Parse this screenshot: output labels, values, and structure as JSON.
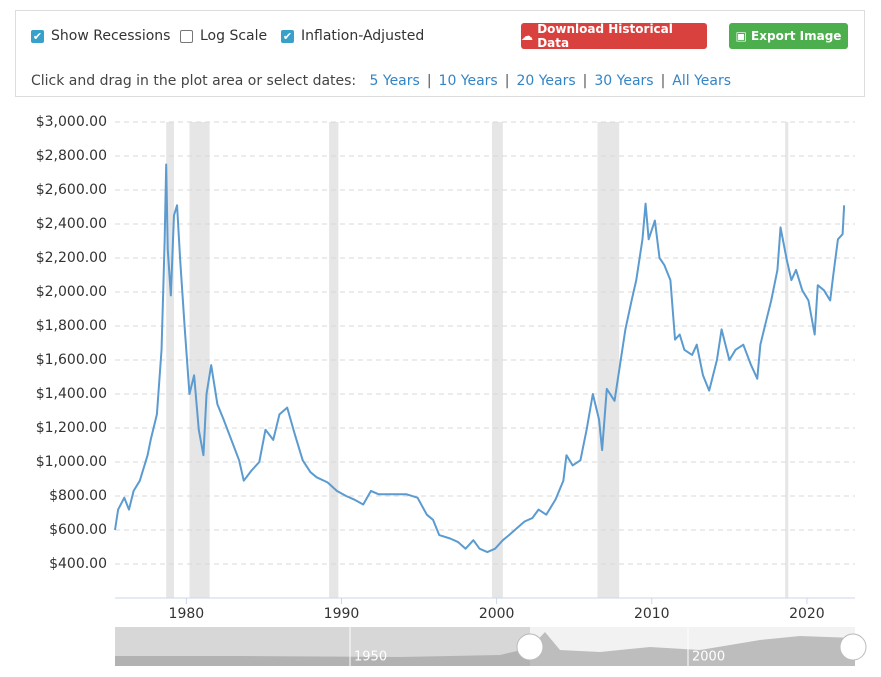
{
  "controls": {
    "checkboxes": [
      {
        "label": "Show Recessions",
        "checked": true
      },
      {
        "label": "Log Scale",
        "checked": false
      },
      {
        "label": "Inflation-Adjusted",
        "checked": true
      }
    ],
    "buttons": [
      {
        "label": "Download Historical Data",
        "color": "#d9413f"
      },
      {
        "label": "Export Image",
        "color": "#4cae4c"
      }
    ],
    "prompt": "Click and drag in the plot area or select dates:",
    "ranges": [
      "5 Years",
      "10 Years",
      "20 Years",
      "30 Years",
      "All Years"
    ],
    "separator": "|"
  },
  "chart_data": {
    "type": "line",
    "xlim": [
      1975.4,
      2023.1
    ],
    "xticks": [
      1980,
      1990,
      2000,
      2010,
      2020
    ],
    "ylim": [
      200,
      3000
    ],
    "yticks": [
      {
        "value": 400,
        "label": "$400.00"
      },
      {
        "value": 600,
        "label": "$600.00"
      },
      {
        "value": 800,
        "label": "$800.00"
      },
      {
        "value": 1000,
        "label": "$1,000.00"
      },
      {
        "value": 1200,
        "label": "$1,200.00"
      },
      {
        "value": 1400,
        "label": "$1,400.00"
      },
      {
        "value": 1600,
        "label": "$1,600.00"
      },
      {
        "value": 1800,
        "label": "$1,800.00"
      },
      {
        "value": 2000,
        "label": "$2,000.00"
      },
      {
        "value": 2200,
        "label": "$2,200.00"
      },
      {
        "value": 2400,
        "label": "$2,400.00"
      },
      {
        "value": 2600,
        "label": "$2,600.00"
      },
      {
        "value": 2800,
        "label": "$2,800.00"
      },
      {
        "value": 3000,
        "label": "$3,000.00"
      }
    ],
    "grid": true,
    "recession_color": "#e6e6e6",
    "recessions": [
      [
        1978.7,
        1979.2
      ],
      [
        1980.2,
        1981.5
      ],
      [
        1989.2,
        1989.8
      ],
      [
        1999.7,
        2000.4
      ],
      [
        2006.5,
        2007.9
      ],
      [
        2018.6,
        2018.8
      ]
    ],
    "series": [
      {
        "color": "#5b9bd0",
        "x": [
          1975.4,
          1975.6,
          1976.0,
          1976.3,
          1976.6,
          1977.0,
          1977.5,
          1977.7,
          1978.1,
          1978.4,
          1978.6,
          1978.7,
          1978.8,
          1979.0,
          1979.2,
          1979.4,
          1979.6,
          1979.9,
          1980.2,
          1980.5,
          1980.8,
          1981.1,
          1981.3,
          1981.6,
          1982.0,
          1982.4,
          1982.9,
          1983.4,
          1983.7,
          1984.2,
          1984.7,
          1985.1,
          1985.6,
          1986.0,
          1986.5,
          1987.0,
          1987.5,
          1988.0,
          1988.4,
          1989.1,
          1989.7,
          1990.3,
          1990.8,
          1991.4,
          1991.9,
          1992.4,
          1993.2,
          1994.2,
          1994.9,
          1995.5,
          1995.9,
          1996.3,
          1997.0,
          1997.5,
          1998.0,
          1998.5,
          1998.9,
          1999.4,
          1999.9,
          2000.4,
          2000.8,
          2001.3,
          2001.8,
          2002.3,
          2002.7,
          2003.2,
          2003.8,
          2004.3,
          2004.5,
          2004.9,
          2005.4,
          2005.8,
          2006.2,
          2006.6,
          2006.8,
          2007.1,
          2007.6,
          2008.0,
          2008.3,
          2008.7,
          2009.0,
          2009.4,
          2009.6,
          2009.8,
          2010.2,
          2010.5,
          2010.8,
          2011.2,
          2011.5,
          2011.8,
          2012.1,
          2012.6,
          2012.9,
          2013.3,
          2013.7,
          2014.2,
          2014.5,
          2015.0,
          2015.4,
          2015.9,
          2016.4,
          2016.8,
          2017.0,
          2017.4,
          2017.7,
          2018.1,
          2018.3,
          2018.7,
          2019.0,
          2019.3,
          2019.7,
          2020.1,
          2020.5,
          2020.7,
          2021.1,
          2021.5,
          2021.7,
          2022.0,
          2022.3,
          2022.4
        ],
        "values": [
          600,
          720,
          790,
          720,
          830,
          890,
          1040,
          1130,
          1280,
          1660,
          2300,
          2750,
          2250,
          1980,
          2450,
          2510,
          2190,
          1780,
          1400,
          1510,
          1190,
          1040,
          1400,
          1570,
          1340,
          1250,
          1130,
          1010,
          890,
          950,
          1000,
          1190,
          1130,
          1280,
          1320,
          1160,
          1010,
          940,
          910,
          880,
          830,
          800,
          780,
          750,
          830,
          810,
          810,
          810,
          790,
          690,
          660,
          570,
          550,
          530,
          490,
          540,
          490,
          470,
          490,
          540,
          570,
          610,
          650,
          670,
          720,
          690,
          780,
          890,
          1040,
          980,
          1010,
          1190,
          1400,
          1250,
          1070,
          1430,
          1360,
          1600,
          1780,
          1950,
          2070,
          2310,
          2520,
          2310,
          2420,
          2200,
          2160,
          2070,
          1720,
          1750,
          1660,
          1630,
          1690,
          1510,
          1420,
          1600,
          1780,
          1600,
          1660,
          1690,
          1570,
          1490,
          1690,
          1840,
          1950,
          2130,
          2380,
          2190,
          2070,
          2130,
          2010,
          1950,
          1750,
          2040,
          2010,
          1950,
          2100,
          2310,
          2340,
          2510
        ]
      }
    ],
    "navigator_labels": [
      "1950",
      "2000"
    ]
  }
}
